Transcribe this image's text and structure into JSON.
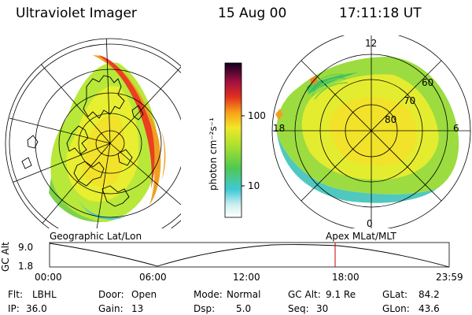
{
  "header": {
    "title": "Ultraviolet Imager",
    "date": "15 Aug 00",
    "time": "17:11:18 UT"
  },
  "colorbar": {
    "unit_label": "photon cm⁻²s⁻¹",
    "ticks": [
      "100",
      "10"
    ]
  },
  "left_map": {
    "label": "Geographic Lat/Lon"
  },
  "right_map": {
    "label": "Apex MLat/MLT",
    "mlt_labels": [
      "12",
      "18",
      "6",
      "0"
    ],
    "lat_labels": [
      "60",
      "70",
      "80"
    ]
  },
  "altitude_plot": {
    "ylabel": "GC Alt",
    "yticks": [
      "9.0",
      "1.8"
    ],
    "xticks": [
      "00:00",
      "06:00",
      "12:00",
      "18:00",
      "23:59"
    ],
    "current_time_fraction": 0.7146
  },
  "info": {
    "flt_label": "Flt:",
    "flt_value": "LBHL",
    "ip_label": "IP:",
    "ip_value": "36.0",
    "door_label": "Door:",
    "door_value": "Open",
    "gain_label": "Gain:",
    "gain_value": "13",
    "mode_label": "Mode:",
    "mode_value": "Normal",
    "dsp_label": "Dsp:",
    "dsp_value": "5.0",
    "gcalt_label": "GC Alt:",
    "gcalt_value": "9.1 Re",
    "seq_label": "Seq:",
    "seq_value": "30",
    "glat_label": "GLat:",
    "glat_value": "84.2",
    "glon_label": "GLon:",
    "glon_value": "43.6"
  },
  "colors": {
    "current_time_marker": "#cc0000"
  }
}
